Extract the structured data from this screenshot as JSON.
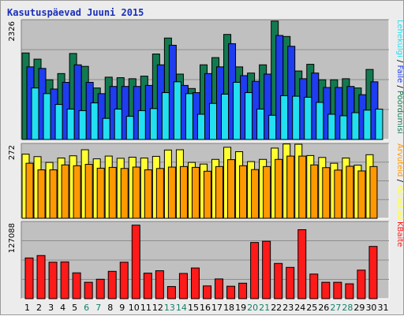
{
  "chart_title": "Kasutuspäevad Juuni 2015",
  "colors": {
    "title": "#1a2fb8",
    "panel_bg": "#c0c0c0",
    "hits": "#137a50",
    "files": "#1e3cf0",
    "pages": "#22e0f0",
    "visits": "#ffff33",
    "sites": "#ff9900",
    "kbytes": "#ff1a1a",
    "weekday": "#000000",
    "weekend": "#14806a"
  },
  "side_labels": {
    "top": [
      "Pöördumisi",
      "Faile",
      "Lehekülgi"
    ],
    "middle": [
      "Külastusi",
      "Arvuteid"
    ],
    "bottom": [
      "KBaite"
    ]
  },
  "chart_data": [
    {
      "type": "bar",
      "panel": "top",
      "ymax_label": "2326",
      "ylim": [
        0,
        2326
      ],
      "categories": [
        "1",
        "2",
        "3",
        "4",
        "5",
        "6",
        "7",
        "8",
        "9",
        "10",
        "11",
        "12",
        "13",
        "14",
        "15",
        "16",
        "17",
        "18",
        "19",
        "20",
        "21",
        "22",
        "23",
        "24",
        "25",
        "26",
        "27",
        "28",
        "29",
        "30",
        "31"
      ],
      "series": [
        {
          "name": "Pöördumisi",
          "values": [
            1680,
            1560,
            1160,
            1280,
            1670,
            1420,
            1000,
            1210,
            1200,
            1180,
            1230,
            1660,
            1970,
            1270,
            990,
            1450,
            1590,
            2040,
            1410,
            1290,
            1450,
            2300,
            2000,
            1330,
            1460,
            1160,
            1160,
            1180,
            1000,
            1360,
            0
          ]
        },
        {
          "name": "Faile",
          "values": [
            1410,
            1380,
            980,
            1110,
            1450,
            1110,
            890,
            1030,
            1030,
            1030,
            1050,
            1450,
            1830,
            1050,
            910,
            1280,
            1410,
            1860,
            1240,
            1130,
            1270,
            2020,
            1810,
            1180,
            1290,
            1010,
            1010,
            1030,
            870,
            1120,
            0
          ]
        },
        {
          "name": "Lehekülgi",
          "values": [
            1000,
            890,
            680,
            590,
            560,
            710,
            410,
            590,
            450,
            560,
            600,
            910,
            1120,
            890,
            490,
            700,
            880,
            1110,
            910,
            590,
            470,
            850,
            840,
            820,
            720,
            490,
            460,
            520,
            570,
            590,
            0
          ]
        }
      ]
    },
    {
      "type": "bar",
      "panel": "middle",
      "ymax_label": "272",
      "ylim": [
        0,
        272
      ],
      "categories": [
        "1",
        "2",
        "3",
        "4",
        "5",
        "6",
        "7",
        "8",
        "9",
        "10",
        "11",
        "12",
        "13",
        "14",
        "15",
        "16",
        "17",
        "18",
        "19",
        "20",
        "21",
        "22",
        "23",
        "24",
        "25",
        "26",
        "27",
        "28",
        "29",
        "30",
        "31"
      ],
      "series": [
        {
          "name": "Külastusi",
          "values": [
            233,
            224,
            203,
            219,
            227,
            249,
            216,
            226,
            218,
            222,
            219,
            225,
            248,
            249,
            203,
            197,
            214,
            258,
            242,
            206,
            214,
            255,
            270,
            269,
            228,
            221,
            200,
            219,
            193,
            231,
            0
          ]
        },
        {
          "name": "Arvuteid",
          "values": [
            200,
            176,
            176,
            194,
            191,
            196,
            182,
            185,
            181,
            186,
            176,
            181,
            186,
            188,
            185,
            171,
            188,
            213,
            191,
            177,
            188,
            214,
            226,
            226,
            194,
            184,
            175,
            189,
            172,
            188,
            0
          ]
        }
      ]
    },
    {
      "type": "bar",
      "panel": "bottom",
      "ymax_label": "127088",
      "ylim": [
        0,
        127088
      ],
      "categories": [
        "1",
        "2",
        "3",
        "4",
        "5",
        "6",
        "7",
        "8",
        "9",
        "10",
        "11",
        "12",
        "13",
        "14",
        "15",
        "16",
        "17",
        "18",
        "19",
        "20",
        "21",
        "22",
        "23",
        "24",
        "25",
        "26",
        "27",
        "28",
        "29",
        "30",
        "31"
      ],
      "series": [
        {
          "name": "KBaite",
          "values": [
            67000,
            71000,
            60000,
            60500,
            42500,
            27000,
            32000,
            45000,
            60000,
            121000,
            42000,
            46000,
            20000,
            41500,
            50500,
            21000,
            32500,
            20500,
            25500,
            92500,
            94500,
            58000,
            51500,
            113500,
            40500,
            27000,
            27000,
            24500,
            47000,
            86000,
            0
          ]
        }
      ]
    }
  ]
}
